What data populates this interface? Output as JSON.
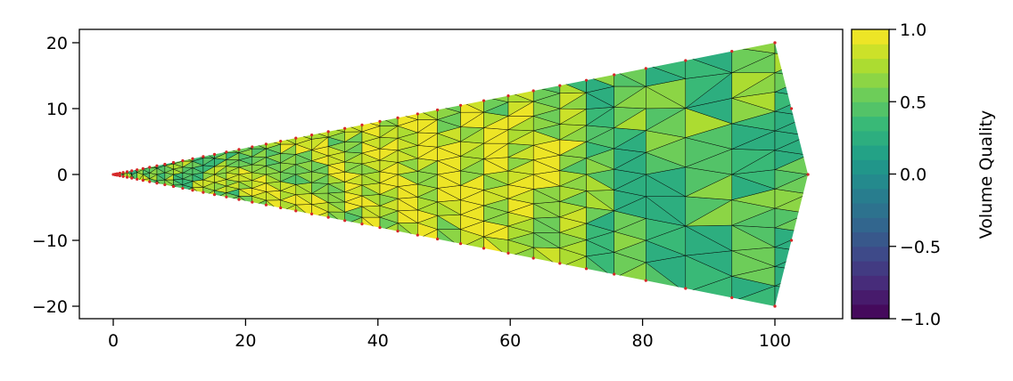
{
  "chart_data": {
    "type": "mesh",
    "title": "",
    "xlabel": "",
    "ylabel": "",
    "xlim": [
      -5,
      110
    ],
    "ylim": [
      -22,
      22
    ],
    "xticks": [
      0,
      20,
      40,
      60,
      80,
      100
    ],
    "yticks": [
      -20,
      -10,
      0,
      10,
      20
    ],
    "xtick_labels": [
      "0",
      "20",
      "40",
      "60",
      "80",
      "100"
    ],
    "ytick_labels": [
      "−20",
      "−10",
      "0",
      "10",
      "20"
    ],
    "wedge_outline": [
      [
        0,
        0
      ],
      [
        100,
        20
      ],
      [
        105,
        0
      ],
      [
        100,
        -20
      ]
    ],
    "boundary_node_x": [
      0.3,
      0.6,
      1.0,
      1.5,
      2.1,
      2.8,
      3.6,
      4.5,
      5.5,
      6.6,
      7.8,
      9.1,
      10.5,
      12.0,
      13.6,
      15.3,
      17.1,
      19.0,
      21.0,
      23.1,
      25.3,
      27.6,
      30.0,
      32.5,
      35.0,
      37.6,
      40.3,
      43.0,
      46.0,
      49.0,
      52.5,
      56.0,
      59.7,
      63.5,
      67.5,
      71.5,
      75.7,
      80.5,
      86.5,
      93.5,
      100.0
    ],
    "right_edge_nodes": [
      [
        100,
        20
      ],
      [
        102.5,
        10
      ],
      [
        105,
        0
      ],
      [
        102.5,
        -10
      ],
      [
        100,
        -20
      ]
    ],
    "quality_field_samples": [
      {
        "x": 5,
        "y": 0,
        "q": 0.55
      },
      {
        "x": 12,
        "y": 0,
        "q": 0.6
      },
      {
        "x": 25,
        "y": 0,
        "q": 0.72
      },
      {
        "x": 45,
        "y": 0,
        "q": 0.85
      },
      {
        "x": 60,
        "y": 0,
        "q": 0.9
      },
      {
        "x": 82,
        "y": 0,
        "q": 0.3
      },
      {
        "x": 100,
        "y": 0,
        "q": 0.4
      },
      {
        "x": 92,
        "y": 12,
        "q": 0.45
      },
      {
        "x": 95,
        "y": -12,
        "q": 0.4
      }
    ],
    "colorbar": {
      "label": "Volume Quality",
      "range": [
        -1.0,
        1.0
      ],
      "ticks": [
        1.0,
        0.5,
        0.0,
        -0.5,
        -1.0
      ],
      "tick_labels": [
        "1.0",
        "0.5",
        "0.0",
        "−0.5",
        "−1.0"
      ],
      "levels": 20,
      "colormap_stops": [
        "#440154",
        "#482878",
        "#3e4989",
        "#31688e",
        "#26828e",
        "#1f9e89",
        "#35b779",
        "#6ece58",
        "#b5de2b",
        "#fde725"
      ]
    },
    "mesh_edge_color": "#000000",
    "node_color": "#d62728",
    "grid": false,
    "legend": "none"
  }
}
